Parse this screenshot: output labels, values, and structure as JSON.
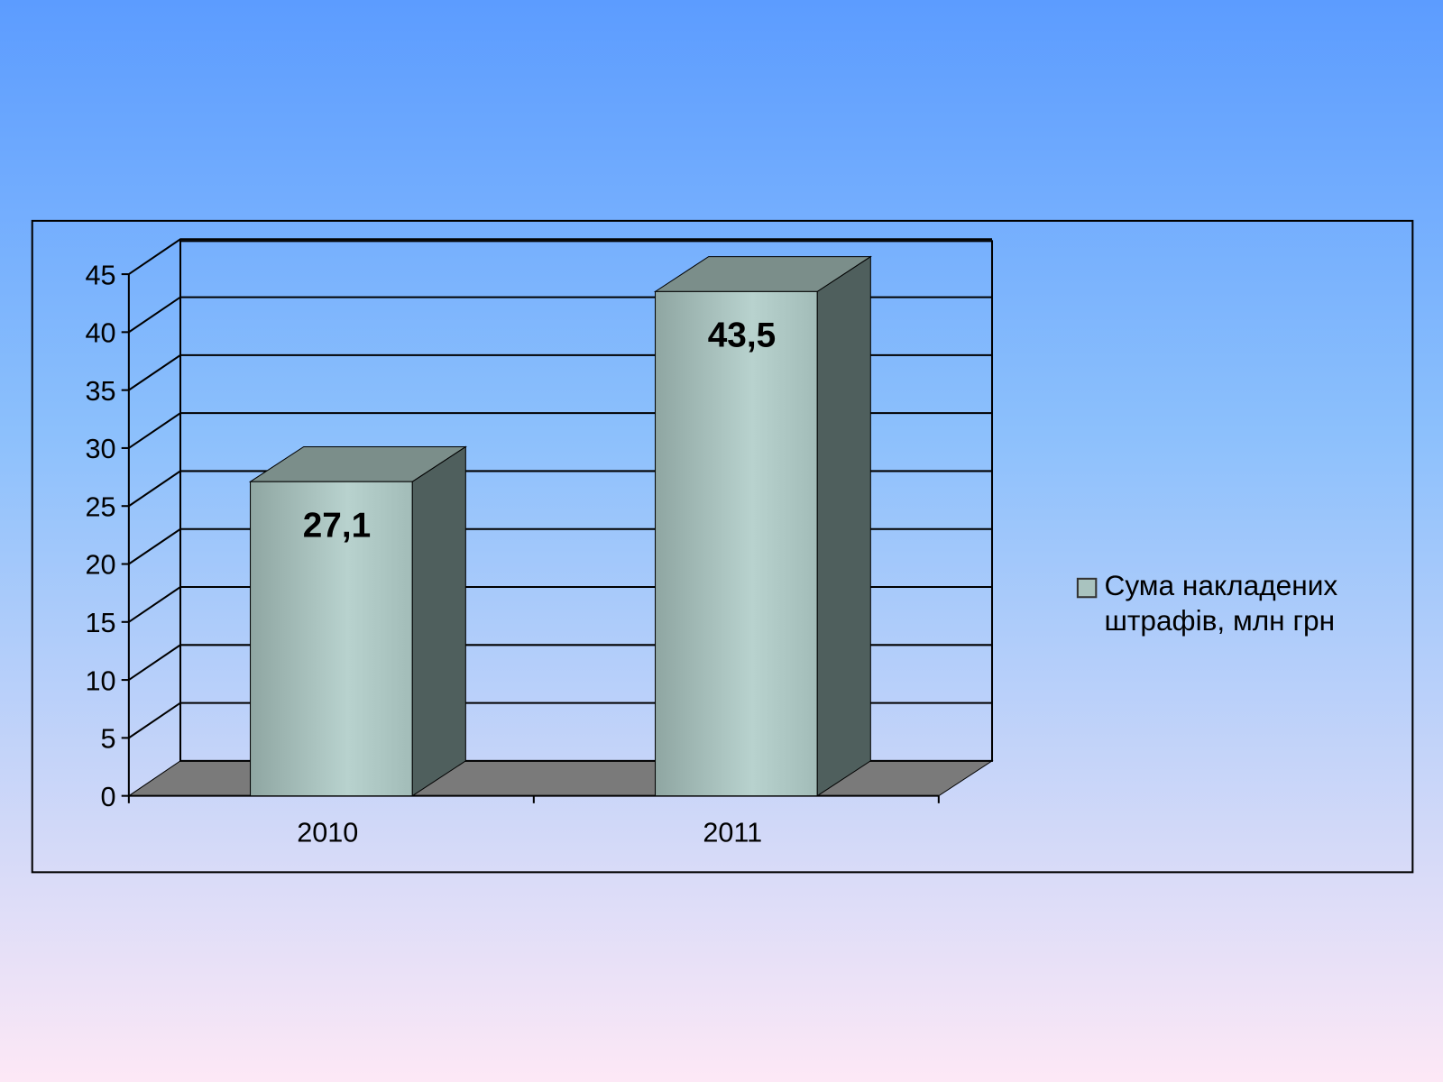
{
  "chart_data": {
    "type": "bar3d",
    "categories": [
      "2010",
      "2011"
    ],
    "series": [
      {
        "name": "Сума накладених штрафів, млн грн",
        "color": "#a9c3bf",
        "values": [
          27.1,
          43.5
        ],
        "value_labels": [
          "27,1",
          "43,5"
        ]
      }
    ],
    "ylim": [
      0,
      45
    ],
    "yticks": [
      0,
      5,
      10,
      15,
      20,
      25,
      30,
      35,
      40,
      45
    ],
    "grid": true,
    "legend": "right"
  }
}
